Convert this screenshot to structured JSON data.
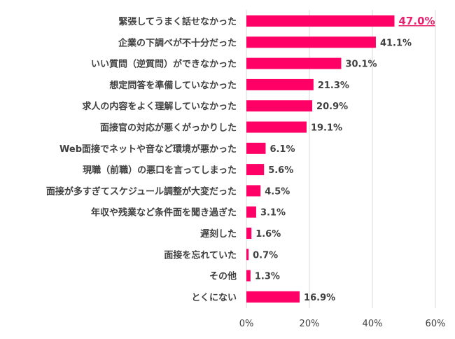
{
  "chart_data": {
    "type": "bar",
    "orientation": "horizontal",
    "categories": [
      "緊張してうまく話せなかった",
      "企業の下調べが不十分だった",
      "いい質問（逆質問）ができなかった",
      "想定問答を準備していなかった",
      "求人の内容をよく理解していなかった",
      "面接官の対応が悪くがっかりした",
      "Web面接でネットや音など環境が悪かった",
      "現職（前職）の悪口を言ってしまった",
      "面接が多すぎてスケジュール調整が大変だった",
      "年収や残業など条件面を聞き過ぎた",
      "遅刻した",
      "面接を忘れていた",
      "その他",
      "とくにない"
    ],
    "values": [
      47.0,
      41.1,
      30.1,
      21.3,
      20.9,
      19.1,
      6.1,
      5.6,
      4.5,
      3.1,
      1.6,
      0.7,
      1.3,
      16.9
    ],
    "value_labels": [
      "47.0%",
      "41.1%",
      "30.1%",
      "21.3%",
      "20.9%",
      "19.1%",
      "6.1%",
      "5.6%",
      "4.5%",
      "3.1%",
      "1.6%",
      "0.7%",
      "1.3%",
      "16.9%"
    ],
    "highlight_index": 0,
    "xlim": [
      0,
      60
    ],
    "xticks": [
      0,
      20,
      40,
      60
    ],
    "xtick_labels": [
      "0%",
      "20%",
      "40%",
      "60%"
    ],
    "grid": true,
    "title": "",
    "xlabel": "",
    "ylabel": "",
    "colors": {
      "bar": "#ff0066",
      "highlight_label": "#e8246e",
      "label": "#404040",
      "grid": "#d9d9d9"
    }
  }
}
